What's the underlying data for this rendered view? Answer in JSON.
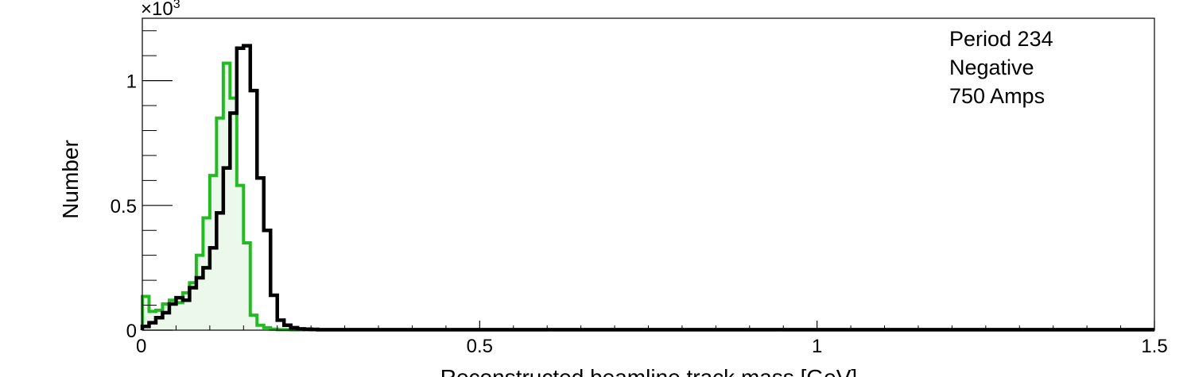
{
  "chart_data": {
    "type": "area",
    "xlabel": "Reconstructed beamline track mass [GeV]",
    "ylabel": "Number",
    "ylabel_multiplier": "×10",
    "ylabel_multiplier_exp": "3",
    "xlim": [
      0,
      1.5
    ],
    "ylim": [
      0,
      1.25
    ],
    "grid": false,
    "x_ticks": [
      {
        "value": 0,
        "label": "0"
      },
      {
        "value": 0.5,
        "label": "0.5"
      },
      {
        "value": 1,
        "label": "1"
      },
      {
        "value": 1.5,
        "label": "1.5"
      }
    ],
    "y_ticks": [
      {
        "value": 0,
        "label": "0"
      },
      {
        "value": 0.5,
        "label": "0.5"
      },
      {
        "value": 1,
        "label": "1"
      }
    ],
    "annotation_lines": [
      "Period 234",
      "Negative",
      "750 Amps"
    ],
    "bin_width": 0.01,
    "series": [
      {
        "style": "filled green step",
        "color": "#22bb22",
        "fill": "#edf8ed",
        "values": [
          0.135,
          0.075,
          0.08,
          0.105,
          0.12,
          0.11,
          0.15,
          0.19,
          0.3,
          0.45,
          0.62,
          0.85,
          1.07,
          0.93,
          0.58,
          0.35,
          0.06,
          0.02,
          0.01,
          0.004,
          0.002,
          0.002,
          0.001,
          0.001,
          0.001,
          0.001,
          0.001,
          0.001,
          0.001,
          0.001,
          0.001,
          0.001,
          0.001,
          0.001,
          0.001,
          0.001,
          0.001,
          0.001,
          0.001,
          0.001,
          0.001,
          0.001,
          0.001,
          0.001,
          0.001,
          0.001,
          0.001,
          0.001,
          0.001,
          0.001,
          0.001,
          0.001,
          0.001,
          0.001,
          0.001,
          0.001,
          0.001,
          0.001,
          0.001,
          0.001,
          0.002,
          0.001,
          0.001,
          0.001,
          0.001,
          0.001,
          0.001,
          0.001,
          0.001,
          0.001,
          0.001,
          0.001,
          0.001,
          0.001,
          0.001,
          0.001,
          0.001,
          0.001,
          0.001,
          0.001,
          0.001,
          0.001,
          0.001,
          0.001,
          0.001,
          0.001,
          0.001,
          0.001,
          0.001,
          0.001,
          0.001,
          0.001,
          0.001,
          0.001,
          0.002,
          0.001,
          0.001,
          0.001,
          0.001,
          0.001,
          0.001,
          0.001,
          0.001,
          0.001,
          0.001,
          0.001,
          0.001,
          0.001,
          0.001,
          0.001,
          0.001,
          0.001,
          0.001,
          0.001,
          0.001,
          0.001,
          0.001,
          0.001,
          0.001,
          0.001,
          0.001,
          0.001,
          0.001,
          0.001,
          0.001,
          0.001,
          0.001,
          0.001,
          0.001,
          0.001,
          0.001,
          0.001,
          0.001,
          0.001,
          0.001,
          0.001,
          0.001,
          0.001,
          0.001,
          0.001,
          0.001,
          0.001,
          0.001,
          0.001,
          0.001,
          0.001,
          0.001,
          0.001,
          0.001,
          0.001
        ]
      },
      {
        "style": "black step",
        "color": "#000000",
        "values": [
          0.015,
          0.03,
          0.05,
          0.07,
          0.105,
          0.13,
          0.12,
          0.17,
          0.21,
          0.25,
          0.33,
          0.47,
          0.65,
          0.87,
          1.13,
          1.14,
          0.96,
          0.61,
          0.4,
          0.14,
          0.04,
          0.02,
          0.01,
          0.005,
          0.004,
          0.003,
          0.002,
          0.002,
          0.002,
          0.002,
          0.002,
          0.002,
          0.002,
          0.002,
          0.002,
          0.002,
          0.002,
          0.002,
          0.002,
          0.002,
          0.002,
          0.002,
          0.002,
          0.002,
          0.002,
          0.002,
          0.002,
          0.002,
          0.002,
          0.002,
          0.002,
          0.002,
          0.002,
          0.002,
          0.002,
          0.002,
          0.002,
          0.002,
          0.002,
          0.002,
          0.002,
          0.002,
          0.002,
          0.002,
          0.002,
          0.002,
          0.002,
          0.002,
          0.002,
          0.002,
          0.002,
          0.002,
          0.002,
          0.002,
          0.002,
          0.002,
          0.002,
          0.002,
          0.002,
          0.002,
          0.002,
          0.002,
          0.002,
          0.002,
          0.002,
          0.002,
          0.002,
          0.002,
          0.002,
          0.002,
          0.002,
          0.002,
          0.002,
          0.002,
          0.002,
          0.002,
          0.002,
          0.002,
          0.002,
          0.002,
          0.002,
          0.002,
          0.002,
          0.002,
          0.002,
          0.002,
          0.002,
          0.002,
          0.002,
          0.002,
          0.002,
          0.002,
          0.002,
          0.002,
          0.002,
          0.002,
          0.002,
          0.002,
          0.002,
          0.002,
          0.002,
          0.002,
          0.002,
          0.002,
          0.002,
          0.002,
          0.002,
          0.002,
          0.002,
          0.002,
          0.002,
          0.002,
          0.002,
          0.002,
          0.002,
          0.002,
          0.002,
          0.002,
          0.002,
          0.002,
          0.002,
          0.002,
          0.002,
          0.002,
          0.002,
          0.002,
          0.002,
          0.002,
          0.002,
          0.002
        ]
      }
    ]
  }
}
